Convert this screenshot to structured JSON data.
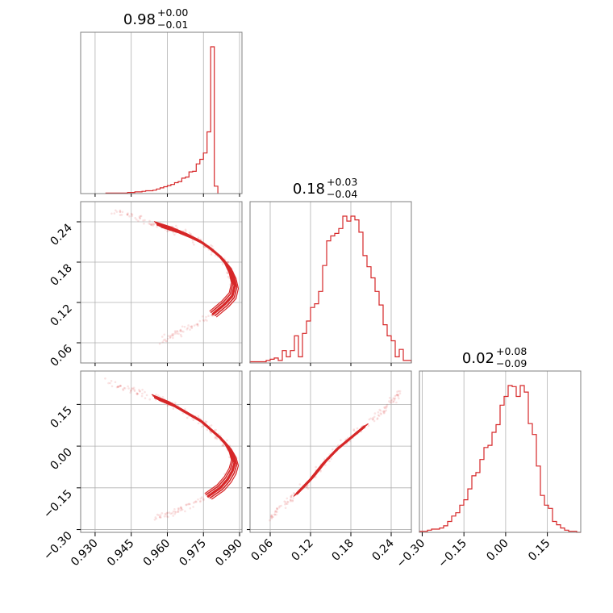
{
  "colors": {
    "series": "#d62728",
    "grid": "#b0b0b0",
    "frame": "#7f7f7f"
  },
  "chart_data": {
    "type": "corner",
    "parameters": [
      {
        "title": {
          "median": "0.98",
          "upper": "+0.00",
          "lower": "−0.01"
        },
        "range": [
          0.924,
          0.991
        ],
        "ticks": [
          0.93,
          0.945,
          0.96,
          0.975,
          0.99
        ],
        "tick_labels": [
          "0.930",
          "0.945",
          "0.960",
          "0.975",
          "0.990"
        ]
      },
      {
        "title": {
          "median": "0.18",
          "upper": "+0.03",
          "lower": "−0.04"
        },
        "range": [
          0.03,
          0.27
        ],
        "ticks": [
          0.06,
          0.12,
          0.18,
          0.24
        ],
        "tick_labels": [
          "0.06",
          "0.12",
          "0.18",
          "0.24"
        ]
      },
      {
        "title": {
          "median": "0.02",
          "upper": "+0.08",
          "lower": "−0.09"
        },
        "range": [
          -0.31,
          0.27
        ],
        "ticks": [
          -0.3,
          -0.15,
          0.0,
          0.15
        ],
        "tick_labels": [
          "−0.30",
          "−0.15",
          "0.00",
          "0.15"
        ]
      }
    ],
    "histograms": [
      {
        "param": 0,
        "bin_edges_start": 0.9345,
        "bin_width": 0.0015,
        "counts": [
          1,
          1,
          1,
          1,
          1,
          1,
          2,
          2,
          3,
          3,
          4,
          5,
          5,
          6,
          8,
          10,
          12,
          14,
          16,
          19,
          21,
          27,
          29,
          38,
          39,
          52,
          60,
          71,
          108,
          257,
          13
        ]
      },
      {
        "param": 1,
        "bin_edges_start": 0.03,
        "bin_width": 0.006,
        "counts": [
          1,
          1,
          1,
          1,
          2,
          3,
          4,
          2,
          10,
          5,
          10,
          22,
          5,
          24,
          34,
          45,
          48,
          58,
          79,
          99,
          103,
          105,
          109,
          119,
          115,
          119,
          116,
          106,
          87,
          78,
          69,
          58,
          47,
          31,
          22,
          18,
          5,
          11,
          2,
          2
        ]
      },
      {
        "param": 2,
        "bin_edges_start": -0.31,
        "bin_width": 0.0145,
        "counts": [
          1,
          1,
          2,
          3,
          3,
          4,
          6,
          10,
          15,
          18,
          25,
          30,
          40,
          52,
          55,
          67,
          78,
          80,
          92,
          99,
          117,
          125,
          135,
          134,
          125,
          135,
          129,
          100,
          90,
          61,
          34,
          25,
          22,
          10,
          7,
          4,
          2,
          1,
          1,
          0
        ]
      }
    ],
    "scatter_2d": [
      {
        "x_param": 0,
        "y_param": 1,
        "ridge": [
          [
            0.938,
            0.257
          ],
          [
            0.948,
            0.244
          ],
          [
            0.956,
            0.236
          ],
          [
            0.963,
            0.228
          ],
          [
            0.969,
            0.219
          ],
          [
            0.974,
            0.21
          ],
          [
            0.978,
            0.2
          ],
          [
            0.982,
            0.188
          ],
          [
            0.985,
            0.175
          ],
          [
            0.987,
            0.16
          ],
          [
            0.988,
            0.145
          ],
          [
            0.987,
            0.13
          ],
          [
            0.984,
            0.118
          ],
          [
            0.979,
            0.103
          ],
          [
            0.972,
            0.088
          ],
          [
            0.964,
            0.073
          ],
          [
            0.957,
            0.062
          ]
        ]
      },
      {
        "x_param": 0,
        "y_param": 2,
        "ridge": [
          [
            0.935,
            0.23
          ],
          [
            0.945,
            0.2
          ],
          [
            0.955,
            0.175
          ],
          [
            0.962,
            0.15
          ],
          [
            0.968,
            0.12
          ],
          [
            0.974,
            0.09
          ],
          [
            0.978,
            0.06
          ],
          [
            0.982,
            0.03
          ],
          [
            0.985,
            0.0
          ],
          [
            0.987,
            -0.03
          ],
          [
            0.988,
            -0.06
          ],
          [
            0.987,
            -0.09
          ],
          [
            0.985,
            -0.12
          ],
          [
            0.982,
            -0.15
          ],
          [
            0.977,
            -0.18
          ],
          [
            0.97,
            -0.21
          ],
          [
            0.962,
            -0.24
          ],
          [
            0.955,
            -0.26
          ]
        ]
      },
      {
        "x_param": 1,
        "y_param": 2,
        "ridge": [
          [
            0.06,
            -0.26
          ],
          [
            0.08,
            -0.21
          ],
          [
            0.1,
            -0.17
          ],
          [
            0.12,
            -0.12
          ],
          [
            0.14,
            -0.06
          ],
          [
            0.16,
            -0.01
          ],
          [
            0.18,
            0.03
          ],
          [
            0.2,
            0.07
          ],
          [
            0.22,
            0.11
          ],
          [
            0.24,
            0.16
          ],
          [
            0.255,
            0.2
          ]
        ]
      }
    ]
  }
}
